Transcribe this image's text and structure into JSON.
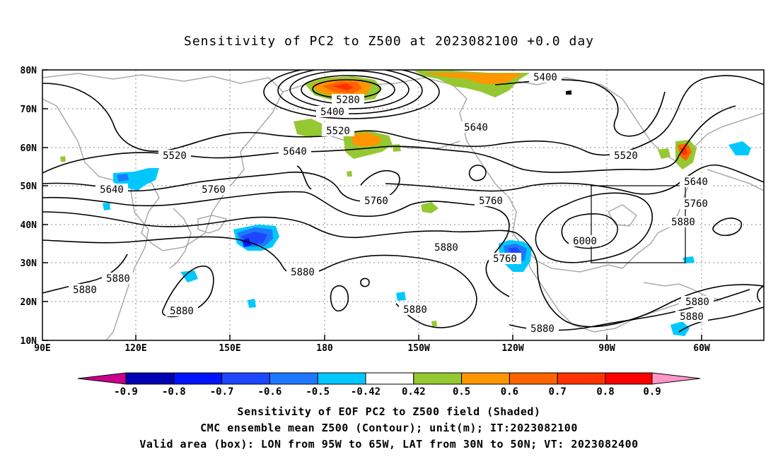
{
  "title": "Sensitivity of PC2 to Z500 at 2023082100 +0.0 day",
  "lat_labels": [
    "80N",
    "70N",
    "60N",
    "50N",
    "40N",
    "30N",
    "20N",
    "10N"
  ],
  "lon_labels": [
    "90E",
    "120E",
    "150E",
    "180",
    "150W",
    "120W",
    "90W",
    "60W"
  ],
  "contour_labels": [
    "5400",
    "5280",
    "5400",
    "5520",
    "5640",
    "5640",
    "5520",
    "5640",
    "5760",
    "5760",
    "5760",
    "5520",
    "5640",
    "5760",
    "5880",
    "6000",
    "5880",
    "5760",
    "5880",
    "5880",
    "5880",
    "5880",
    "5880",
    "5880",
    "5880",
    "5880"
  ],
  "colorbar": {
    "labels": [
      "-0.9",
      "-0.8",
      "-0.7",
      "-0.6",
      "-0.5",
      "-0.42",
      "0.42",
      "0.5",
      "0.6",
      "0.7",
      "0.8",
      "0.9"
    ],
    "colors": [
      "#c8008c",
      "#0000b4",
      "#0014ff",
      "#1e46ff",
      "#1e78ff",
      "#00c8ff",
      "#ffffff",
      "#96c832",
      "#ff9600",
      "#ff6400",
      "#ff3200",
      "#ff0000",
      "#ff96c8"
    ]
  },
  "captions": [
    "Sensitivity of EOF PC2 to Z500 field (Shaded)",
    "CMC ensemble mean Z500 (Contour); unit(m); IT:2023082100",
    "Valid area (box): LON from 95W to 65W, LAT from 30N to 50N; VT: 2023082400"
  ],
  "valid_box": {
    "lon": [
      "95W",
      "65W"
    ],
    "lat": [
      "30N",
      "50N"
    ]
  }
}
